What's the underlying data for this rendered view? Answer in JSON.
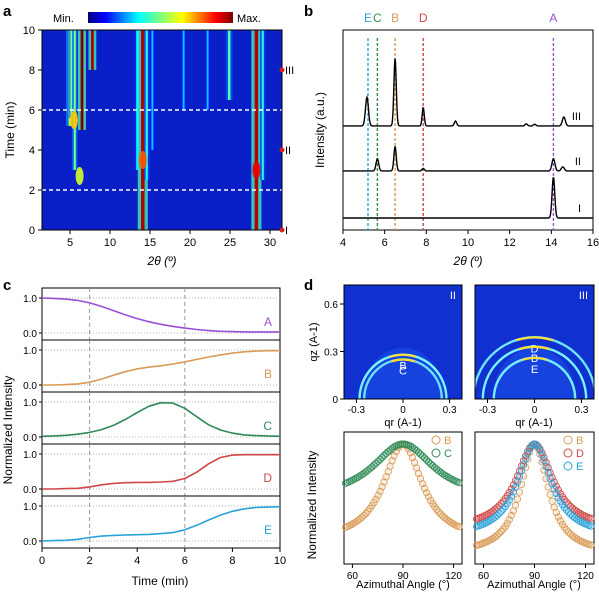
{
  "colors": {
    "A": "#9b4fd6",
    "B": "#d99a55",
    "C": "#2e8b57",
    "D": "#d14646",
    "E": "#2aa3d9",
    "heat_bg": "#0a1fc8",
    "axis": "#000000"
  },
  "chart_data": [
    {
      "panel": "a",
      "type": "heatmap",
      "colorbar_min_label": "Min.",
      "colorbar_max_label": "Max.",
      "xlabel": "2θ (º)",
      "ylabel": "Time (min)",
      "xlim": [
        1.5,
        31.5
      ],
      "ylim": [
        0,
        10
      ],
      "xticks": [
        5,
        10,
        15,
        20,
        25,
        30
      ],
      "yticks": [
        0,
        2,
        4,
        6,
        8,
        10
      ],
      "markers": [
        {
          "label": "I",
          "time": 0
        },
        {
          "label": "II",
          "time": 4
        },
        {
          "label": "III",
          "time": 8
        }
      ],
      "dashed_lines_time": [
        2,
        6
      ],
      "streaks": [
        {
          "x": 5.0,
          "t0": 5.2,
          "t1": 10,
          "w": 0.35,
          "intensity": 0.55
        },
        {
          "x": 5.2,
          "t0": 5.6,
          "t1": 10,
          "w": 0.25,
          "intensity": 0.5
        },
        {
          "x": 5.6,
          "t0": 3.0,
          "t1": 10,
          "w": 0.25,
          "intensity": 0.5
        },
        {
          "x": 6.5,
          "t0": 5.0,
          "t1": 10,
          "w": 0.35,
          "intensity": 1.0
        },
        {
          "x": 7.8,
          "t0": 8.0,
          "t1": 10,
          "w": 0.35,
          "intensity": 0.95
        },
        {
          "x": 13.4,
          "t0": 3.0,
          "t1": 10,
          "w": 0.25,
          "intensity": 0.35
        },
        {
          "x": 14.1,
          "t0": 0,
          "t1": 10,
          "w": 0.45,
          "intensity": 0.95
        },
        {
          "x": 14.6,
          "t0": 2.5,
          "t1": 10,
          "w": 0.25,
          "intensity": 0.4
        },
        {
          "x": 15.3,
          "t0": 4.0,
          "t1": 10,
          "w": 0.2,
          "intensity": 0.3
        },
        {
          "x": 19.2,
          "t0": 6.0,
          "t1": 10,
          "w": 0.25,
          "intensity": 0.3
        },
        {
          "x": 22.2,
          "t0": 6.0,
          "t1": 10,
          "w": 0.25,
          "intensity": 0.3
        },
        {
          "x": 24.9,
          "t0": 6.5,
          "t1": 10,
          "w": 0.3,
          "intensity": 0.45
        },
        {
          "x": 28.3,
          "t0": 0,
          "t1": 10,
          "w": 0.45,
          "intensity": 0.95
        },
        {
          "x": 29.1,
          "t0": 2.5,
          "t1": 10,
          "w": 0.25,
          "intensity": 0.4
        }
      ],
      "blobs": [
        {
          "x": 5.5,
          "t": 5.5,
          "intensity": 0.7
        },
        {
          "x": 6.2,
          "t": 2.7,
          "intensity": 0.6
        },
        {
          "x": 14.1,
          "t": 3.5,
          "intensity": 0.8
        },
        {
          "x": 28.3,
          "t": 3.0,
          "intensity": 0.9
        }
      ]
    },
    {
      "panel": "b",
      "type": "line",
      "xlabel": "2θ (º)",
      "ylabel": "Intensity (a.u.)",
      "xlim": [
        4,
        16
      ],
      "xticks": [
        4,
        6,
        8,
        10,
        12,
        14,
        16
      ],
      "reference_lines": [
        {
          "label": "E",
          "x": 5.2
        },
        {
          "label": "C",
          "x": 5.65
        },
        {
          "label": "B",
          "x": 6.5
        },
        {
          "label": "D",
          "x": 7.85
        },
        {
          "label": "A",
          "x": 14.1
        }
      ],
      "series": [
        {
          "name": "I",
          "baseline": 0.0,
          "peaks": [
            {
              "x": 14.1,
              "h": 1.0,
              "w": 0.09
            }
          ]
        },
        {
          "name": "II",
          "baseline": 1.15,
          "peaks": [
            {
              "x": 5.65,
              "h": 0.3,
              "w": 0.09
            },
            {
              "x": 6.5,
              "h": 0.6,
              "w": 0.08
            },
            {
              "x": 7.85,
              "h": 0.06,
              "w": 0.08
            },
            {
              "x": 14.1,
              "h": 0.3,
              "w": 0.1
            },
            {
              "x": 14.55,
              "h": 0.1,
              "w": 0.1
            }
          ]
        },
        {
          "name": "III",
          "baseline": 2.25,
          "peaks": [
            {
              "x": 5.15,
              "h": 0.7,
              "w": 0.1
            },
            {
              "x": 6.5,
              "h": 1.65,
              "w": 0.08
            },
            {
              "x": 7.85,
              "h": 0.45,
              "w": 0.07
            },
            {
              "x": 9.4,
              "h": 0.12,
              "w": 0.08
            },
            {
              "x": 12.8,
              "h": 0.05,
              "w": 0.08
            },
            {
              "x": 13.2,
              "h": 0.04,
              "w": 0.08
            },
            {
              "x": 14.6,
              "h": 0.22,
              "w": 0.1
            }
          ]
        }
      ]
    },
    {
      "panel": "c",
      "type": "line",
      "xlabel": "Time (min)",
      "ylabel": "Normalized Intensity",
      "xlim": [
        0,
        10
      ],
      "xticks": [
        0,
        2,
        4,
        6,
        8,
        10
      ],
      "yticks_labels": [
        "0.0",
        "1.0"
      ],
      "dashed_lines_time": [
        2,
        6
      ],
      "series": [
        {
          "name": "A",
          "x": [
            0,
            0.5,
            1,
            1.5,
            2,
            2.5,
            3,
            3.5,
            4,
            4.5,
            5,
            5.5,
            6,
            6.5,
            7,
            7.5,
            8,
            8.5,
            9,
            9.5,
            10
          ],
          "values": [
            1.0,
            0.99,
            0.97,
            0.93,
            0.86,
            0.76,
            0.64,
            0.52,
            0.41,
            0.32,
            0.25,
            0.19,
            0.14,
            0.1,
            0.07,
            0.05,
            0.04,
            0.03,
            0.03,
            0.03,
            0.03
          ]
        },
        {
          "name": "B",
          "x": [
            0,
            0.5,
            1,
            1.5,
            2,
            2.5,
            3,
            3.5,
            4,
            4.5,
            5,
            5.5,
            6,
            6.5,
            7,
            7.5,
            8,
            8.5,
            9,
            9.5,
            10
          ],
          "values": [
            0.0,
            0.0,
            0.01,
            0.03,
            0.08,
            0.17,
            0.28,
            0.38,
            0.46,
            0.51,
            0.55,
            0.6,
            0.66,
            0.73,
            0.8,
            0.86,
            0.91,
            0.95,
            0.97,
            0.98,
            0.98
          ]
        },
        {
          "name": "C",
          "x": [
            0,
            0.5,
            1,
            1.5,
            2,
            2.5,
            3,
            3.5,
            4,
            4.5,
            5,
            5.5,
            6,
            6.5,
            7,
            7.5,
            8,
            8.5,
            9,
            9.5,
            10
          ],
          "values": [
            0.02,
            0.03,
            0.05,
            0.08,
            0.13,
            0.21,
            0.33,
            0.5,
            0.7,
            0.88,
            0.98,
            0.97,
            0.82,
            0.58,
            0.35,
            0.2,
            0.11,
            0.06,
            0.04,
            0.03,
            0.02
          ]
        },
        {
          "name": "D",
          "x": [
            0,
            0.5,
            1,
            1.5,
            2,
            2.5,
            3,
            3.5,
            4,
            4.5,
            5,
            5.5,
            6,
            6.5,
            7,
            7.5,
            8,
            8.5,
            9,
            9.5,
            10
          ],
          "values": [
            0.0,
            0.0,
            0.01,
            0.02,
            0.06,
            0.12,
            0.16,
            0.18,
            0.19,
            0.19,
            0.2,
            0.22,
            0.3,
            0.48,
            0.72,
            0.9,
            0.97,
            0.98,
            0.98,
            0.98,
            0.98
          ]
        },
        {
          "name": "E",
          "x": [
            0,
            0.5,
            1,
            1.5,
            2,
            2.5,
            3,
            3.5,
            4,
            4.5,
            5,
            5.5,
            6,
            6.5,
            7,
            7.5,
            8,
            8.5,
            9,
            9.5,
            10
          ],
          "values": [
            0.0,
            0.01,
            0.02,
            0.05,
            0.1,
            0.14,
            0.16,
            0.17,
            0.18,
            0.19,
            0.21,
            0.24,
            0.32,
            0.45,
            0.6,
            0.74,
            0.85,
            0.92,
            0.96,
            0.97,
            0.98
          ]
        }
      ]
    },
    {
      "panel": "d",
      "type": "scatter",
      "gisaxs_ylabel": "qz (A-1)",
      "gisaxs_xlabel": "qr (A-1)",
      "gisaxs_xticks": [
        "-0.3",
        "0",
        "0.3"
      ],
      "gisaxs_yticks": [
        "0",
        "0.3",
        "0.6"
      ],
      "images": [
        {
          "label": "II",
          "rings": [
            {
              "label": "B",
              "r": 0.28,
              "strength": 1.0
            },
            {
              "label": "C",
              "r": 0.25,
              "strength": 0.7
            }
          ]
        },
        {
          "label": "III",
          "rings": [
            {
              "label": "D",
              "r": 0.39,
              "strength": 0.8
            },
            {
              "label": "B",
              "r": 0.33,
              "strength": 1.0
            },
            {
              "label": "E",
              "r": 0.26,
              "strength": 0.9
            }
          ]
        }
      ],
      "xlabel": "Azimuthal Angle (°)",
      "ylabel": "Normalized Intensity",
      "xlim": [
        55,
        125
      ],
      "xticks": [
        60,
        90,
        120
      ],
      "profiles": [
        {
          "image": "II",
          "series": [
            {
              "name": "B",
              "center": 90,
              "width": 14,
              "base": 0.16
            },
            {
              "name": "C",
              "center": 90,
              "width": 22,
              "base": 0.52
            }
          ]
        },
        {
          "image": "III",
          "series": [
            {
              "name": "B",
              "center": 90,
              "width": 10,
              "base": 0.05
            },
            {
              "name": "D",
              "center": 90,
              "width": 13,
              "base": 0.26
            },
            {
              "name": "E",
              "center": 90,
              "width": 12,
              "base": 0.2
            }
          ]
        }
      ]
    }
  ],
  "labels": {
    "panel_a": "a",
    "panel_b": "b",
    "panel_c": "c",
    "panel_d": "d",
    "a_xlabel": "2θ (º)",
    "a_ylabel": "Time (min)",
    "b_xlabel": "2θ (º)",
    "b_ylabel": "Intensity (a.u.)",
    "c_xlabel": "Time (min)",
    "c_ylabel": "Normalized Intensity",
    "d_xlabel": "Azimuthal Angle (°)",
    "d_ylabel": "Normalized Intensity",
    "d_qz_label": "qz (A-1)",
    "d_qr_label": "qr (A-1)",
    "min": "Min.",
    "max": "Max."
  }
}
